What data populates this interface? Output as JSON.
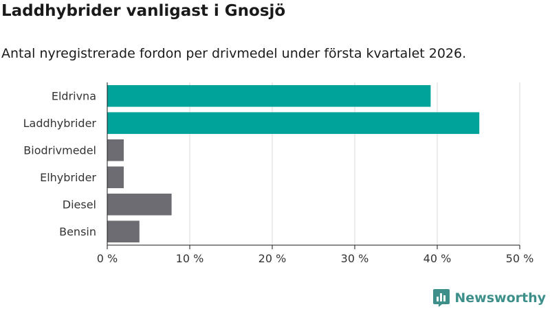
{
  "chart_data": {
    "type": "bar",
    "orientation": "horizontal",
    "title": "Laddhybrider vanligast i Gnosjö",
    "subtitle": "Antal nyregistrerade fordon per drivmedel under första kvartalet 2026.",
    "categories": [
      "Eldrivna",
      "Laddhybrider",
      "Biodrivmedel",
      "Elhybrider",
      "Diesel",
      "Bensin"
    ],
    "values": [
      39.2,
      45.1,
      2.0,
      2.0,
      7.8,
      3.9
    ],
    "value_unit": "%",
    "xlim": [
      0,
      50
    ],
    "x_ticks": [
      0,
      10,
      20,
      30,
      40,
      50
    ],
    "x_tick_labels": [
      "0 %",
      "10 %",
      "20 %",
      "30 %",
      "40 %",
      "50 %"
    ],
    "grid": "vertical",
    "colors": {
      "highlight": "#00a39a",
      "other": "#6d6c73",
      "grid": "#d9d9d9",
      "axis": "#1a1a1a"
    },
    "highlighted_categories": [
      "Eldrivna",
      "Laddhybrider"
    ]
  },
  "branding": {
    "name": "Newsworthy",
    "icon": "newsworthy-logo-icon",
    "color": "#3d8f8a"
  }
}
